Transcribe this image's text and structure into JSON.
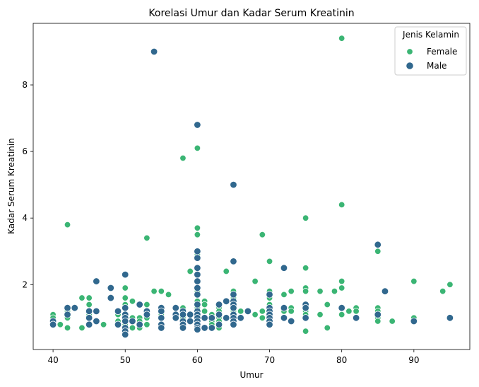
{
  "chart_data": {
    "type": "scatter",
    "title": "Korelasi Umur dan Kadar Serum Kreatinin",
    "xlabel": "Umur",
    "ylabel": "Kadar Serum Kreatinin",
    "xlim": [
      37.25,
      97.75
    ],
    "ylim": [
      0.05,
      9.85
    ],
    "xticks": [
      40,
      50,
      60,
      70,
      80,
      90
    ],
    "yticks": [
      2,
      4,
      6,
      8
    ],
    "grid": false,
    "legend": {
      "title": "Jenis Kelamin",
      "placement": "top-right"
    },
    "series": [
      {
        "name": "Female",
        "color": "#3bb574",
        "points": [
          [
            40,
            1.1
          ],
          [
            40,
            1.0
          ],
          [
            40,
            0.9
          ],
          [
            40,
            0.8
          ],
          [
            41,
            0.8
          ],
          [
            42,
            3.8
          ],
          [
            42,
            1.2
          ],
          [
            42,
            1.0
          ],
          [
            42,
            0.7
          ],
          [
            44,
            1.6
          ],
          [
            44,
            0.7
          ],
          [
            45,
            1.6
          ],
          [
            45,
            1.4
          ],
          [
            45,
            1.1
          ],
          [
            45,
            0.8
          ],
          [
            47,
            0.8
          ],
          [
            49,
            1.1
          ],
          [
            49,
            0.9
          ],
          [
            50,
            1.9
          ],
          [
            50,
            1.6
          ],
          [
            50,
            1.4
          ],
          [
            50,
            1.1
          ],
          [
            50,
            0.9
          ],
          [
            50,
            0.8
          ],
          [
            50,
            0.7
          ],
          [
            51,
            1.5
          ],
          [
            51,
            1.0
          ],
          [
            51,
            0.7
          ],
          [
            52,
            1.0
          ],
          [
            52,
            0.9
          ],
          [
            52,
            0.7
          ],
          [
            53,
            3.4
          ],
          [
            53,
            1.4
          ],
          [
            53,
            1.2
          ],
          [
            53,
            1.0
          ],
          [
            53,
            0.8
          ],
          [
            54,
            1.8
          ],
          [
            55,
            1.8
          ],
          [
            55,
            1.1
          ],
          [
            55,
            1.0
          ],
          [
            56,
            1.7
          ],
          [
            57,
            1.1
          ],
          [
            58,
            5.8
          ],
          [
            58,
            1.3
          ],
          [
            58,
            1.0
          ],
          [
            58,
            0.9
          ],
          [
            59,
            2.4
          ],
          [
            59,
            1.1
          ],
          [
            60,
            6.1
          ],
          [
            60,
            3.7
          ],
          [
            60,
            3.5
          ],
          [
            60,
            2.9
          ],
          [
            60,
            1.8
          ],
          [
            60,
            1.7
          ],
          [
            60,
            1.5
          ],
          [
            60,
            1.3
          ],
          [
            60,
            1.2
          ],
          [
            60,
            1.0
          ],
          [
            60,
            0.9
          ],
          [
            60,
            0.8
          ],
          [
            60,
            0.7
          ],
          [
            61,
            1.5
          ],
          [
            61,
            1.4
          ],
          [
            61,
            1.2
          ],
          [
            61,
            1.0
          ],
          [
            62,
            1.1
          ],
          [
            62,
            0.9
          ],
          [
            62,
            0.8
          ],
          [
            63,
            1.3
          ],
          [
            63,
            1.2
          ],
          [
            63,
            1.0
          ],
          [
            63,
            0.9
          ],
          [
            63,
            0.7
          ],
          [
            64,
            2.4
          ],
          [
            65,
            1.8
          ],
          [
            65,
            1.6
          ],
          [
            65,
            1.3
          ],
          [
            65,
            1.2
          ],
          [
            65,
            1.0
          ],
          [
            65,
            0.9
          ],
          [
            66,
            1.2
          ],
          [
            68,
            2.1
          ],
          [
            68,
            1.1
          ],
          [
            69,
            3.5
          ],
          [
            69,
            1.2
          ],
          [
            69,
            1.0
          ],
          [
            70,
            2.7
          ],
          [
            70,
            1.8
          ],
          [
            70,
            1.6
          ],
          [
            70,
            1.4
          ],
          [
            70,
            1.2
          ],
          [
            70,
            1.1
          ],
          [
            70,
            1.0
          ],
          [
            70,
            0.9
          ],
          [
            72,
            1.7
          ],
          [
            72,
            1.2
          ],
          [
            73,
            1.8
          ],
          [
            73,
            1.3
          ],
          [
            73,
            1.2
          ],
          [
            75,
            4.0
          ],
          [
            75,
            2.5
          ],
          [
            75,
            1.9
          ],
          [
            75,
            1.8
          ],
          [
            75,
            1.2
          ],
          [
            75,
            1.1
          ],
          [
            75,
            0.6
          ],
          [
            77,
            1.8
          ],
          [
            77,
            1.1
          ],
          [
            78,
            1.4
          ],
          [
            78,
            0.7
          ],
          [
            79,
            1.8
          ],
          [
            80,
            9.4
          ],
          [
            80,
            4.4
          ],
          [
            80,
            2.1
          ],
          [
            80,
            1.9
          ],
          [
            80,
            1.1
          ],
          [
            81,
            1.2
          ],
          [
            82,
            1.3
          ],
          [
            82,
            1.2
          ],
          [
            85,
            3.0
          ],
          [
            85,
            1.3
          ],
          [
            85,
            1.2
          ],
          [
            85,
            1.0
          ],
          [
            85,
            0.9
          ],
          [
            87,
            0.9
          ],
          [
            90,
            2.1
          ],
          [
            90,
            1.0
          ],
          [
            94,
            1.8
          ],
          [
            95,
            2.0
          ]
        ]
      },
      {
        "name": "Male",
        "color": "#31688e",
        "points": [
          [
            40,
            0.9
          ],
          [
            40,
            0.8
          ],
          [
            42,
            1.3
          ],
          [
            42,
            1.1
          ],
          [
            43,
            1.3
          ],
          [
            45,
            1.2
          ],
          [
            45,
            1.0
          ],
          [
            45,
            0.8
          ],
          [
            46,
            2.1
          ],
          [
            46,
            1.2
          ],
          [
            46,
            0.9
          ],
          [
            48,
            1.9
          ],
          [
            48,
            1.6
          ],
          [
            49,
            1.2
          ],
          [
            49,
            0.8
          ],
          [
            50,
            2.3
          ],
          [
            50,
            1.3
          ],
          [
            50,
            1.1
          ],
          [
            50,
            1.0
          ],
          [
            50,
            0.9
          ],
          [
            50,
            0.7
          ],
          [
            50,
            0.6
          ],
          [
            50,
            0.5
          ],
          [
            51,
            0.9
          ],
          [
            52,
            1.4
          ],
          [
            52,
            0.8
          ],
          [
            53,
            1.2
          ],
          [
            53,
            1.1
          ],
          [
            54,
            9.0
          ],
          [
            55,
            1.3
          ],
          [
            55,
            1.2
          ],
          [
            55,
            1.0
          ],
          [
            55,
            0.8
          ],
          [
            55,
            0.7
          ],
          [
            57,
            1.3
          ],
          [
            57,
            1.1
          ],
          [
            57,
            1.0
          ],
          [
            58,
            1.2
          ],
          [
            58,
            1.1
          ],
          [
            58,
            0.9
          ],
          [
            58,
            0.8
          ],
          [
            58,
            0.7
          ],
          [
            59,
            1.1
          ],
          [
            59,
            0.9
          ],
          [
            60,
            6.8
          ],
          [
            60,
            3.0
          ],
          [
            60,
            2.8
          ],
          [
            60,
            2.5
          ],
          [
            60,
            2.3
          ],
          [
            60,
            2.1
          ],
          [
            60,
            1.9
          ],
          [
            60,
            1.7
          ],
          [
            60,
            1.4
          ],
          [
            60,
            1.2
          ],
          [
            60,
            1.1
          ],
          [
            60,
            1.0
          ],
          [
            60,
            0.9
          ],
          [
            60,
            0.8
          ],
          [
            60,
            0.7
          ],
          [
            60,
            0.65
          ],
          [
            61,
            1.0
          ],
          [
            61,
            0.7
          ],
          [
            62,
            1.0
          ],
          [
            62,
            0.7
          ],
          [
            63,
            1.4
          ],
          [
            63,
            1.1
          ],
          [
            63,
            0.8
          ],
          [
            64,
            1.5
          ],
          [
            64,
            1.0
          ],
          [
            65,
            5.0
          ],
          [
            65,
            2.7
          ],
          [
            65,
            1.7
          ],
          [
            65,
            1.5
          ],
          [
            65,
            1.4
          ],
          [
            65,
            1.3
          ],
          [
            65,
            1.1
          ],
          [
            65,
            1.0
          ],
          [
            65,
            0.9
          ],
          [
            65,
            0.8
          ],
          [
            66,
            1.0
          ],
          [
            67,
            1.2
          ],
          [
            70,
            1.7
          ],
          [
            70,
            1.3
          ],
          [
            70,
            1.2
          ],
          [
            70,
            1.1
          ],
          [
            70,
            1.0
          ],
          [
            70,
            0.9
          ],
          [
            70,
            0.8
          ],
          [
            72,
            2.5
          ],
          [
            72,
            1.3
          ],
          [
            72,
            1.0
          ],
          [
            73,
            0.9
          ],
          [
            75,
            1.4
          ],
          [
            75,
            1.3
          ],
          [
            75,
            1.0
          ],
          [
            80,
            1.3
          ],
          [
            82,
            1.0
          ],
          [
            85,
            3.2
          ],
          [
            85,
            1.1
          ],
          [
            86,
            1.8
          ],
          [
            90,
            0.9
          ],
          [
            95,
            1.0
          ]
        ]
      }
    ]
  }
}
